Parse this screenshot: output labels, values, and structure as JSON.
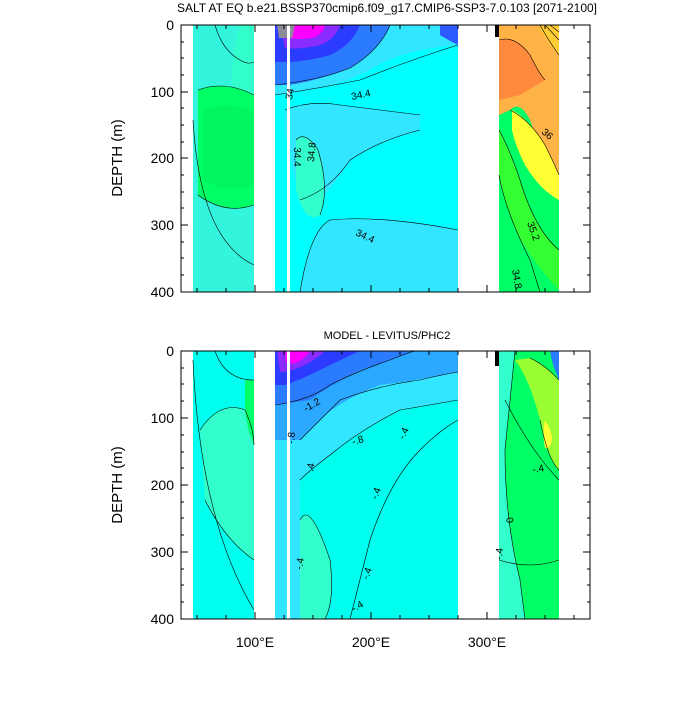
{
  "chart_data": [
    {
      "type": "heatmap",
      "title": "SALT AT EQ b.e21.BSSP370cmip6.f09_g17.CMIP6-SSP3-7.0.103 [2071-2100]",
      "ylabel": "DEPTH (m)",
      "xlabel": "",
      "xlim": [
        30,
        380
      ],
      "ylim": [
        400,
        0
      ],
      "y_ticks": [
        "0",
        "100",
        "200",
        "300",
        "400"
      ],
      "x_ticks": [
        "100°E",
        "200°E",
        "300°E"
      ],
      "contour_labels": [
        "34.4",
        "34",
        "34.4",
        "34.8",
        "34.4",
        "36",
        "35.2",
        "34.8"
      ],
      "land_gaps_lon": [
        [
          97,
          117
        ],
        [
          280,
          315
        ]
      ],
      "colors": {
        "low": "#9999a8",
        "mid_low": "#2b5bff",
        "mid": "#33e6ff",
        "mid_high": "#00ff66",
        "high_salt": "#ffa030",
        "highest": "#ff3300"
      }
    },
    {
      "type": "heatmap",
      "title": "MODEL - LEVITUS/PHC2",
      "ylabel": "DEPTH (m)",
      "xlabel": "",
      "xlim": [
        30,
        380
      ],
      "ylim": [
        400,
        0
      ],
      "y_ticks": [
        "0",
        "100",
        "200",
        "300",
        "400"
      ],
      "x_ticks": [
        "100°E",
        "200°E",
        "300°E"
      ],
      "contour_labels": [
        "-1.2",
        "-.8",
        "-.8",
        "-.4",
        "-.4",
        ".4",
        "-.4",
        "0",
        "-.4",
        "-.4",
        "-.4",
        "-.4"
      ],
      "colors": {
        "negative": "#2b5bff",
        "zero": "#00ffee",
        "positive": "#00ff66"
      }
    }
  ]
}
